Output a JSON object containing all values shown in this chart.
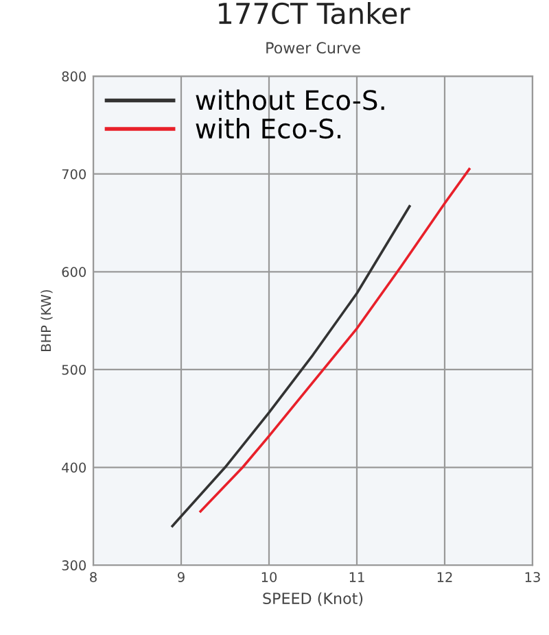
{
  "chart_data": {
    "type": "line",
    "title": "177CT Tanker",
    "subtitle": "Power Curve",
    "xlabel": "SPEED (Knot)",
    "ylabel": "BHP (KW)",
    "xlim": [
      8,
      13
    ],
    "xticks": [
      8,
      9,
      10,
      11,
      12,
      13
    ],
    "ylim": [
      300,
      800
    ],
    "yticks": [
      300,
      400,
      500,
      600,
      700,
      800
    ],
    "grid": true,
    "legend": "top left",
    "marker": "none",
    "line_style": "solid",
    "series": [
      {
        "name": "without Eco-S.",
        "color": "#333333",
        "x": [
          8.9,
          9.5,
          10,
          10.5,
          11,
          11.6
        ],
        "values": [
          340,
          400,
          456,
          515,
          578,
          667
        ]
      },
      {
        "name": "with Eco-S.",
        "color": "#e8202a",
        "x": [
          9.22,
          9.7,
          10,
          10.5,
          11,
          11.5,
          12,
          12.28
        ],
        "values": [
          355,
          400,
          432,
          487,
          542,
          605,
          670,
          705
        ]
      }
    ]
  }
}
